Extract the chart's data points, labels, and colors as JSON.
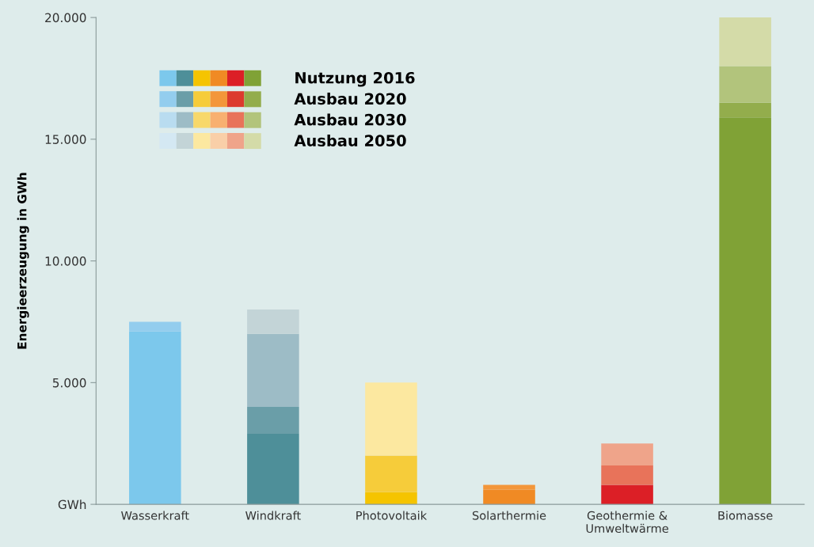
{
  "chart_data": {
    "type": "bar",
    "stacked": true,
    "ylabel": "Energieerzeugung in GWh",
    "categories": [
      "Wasserkraft",
      "Windkraft",
      "Photovoltaik",
      "Solarthermie",
      "Geothermie &\nUmweltwärme",
      "Biomasse"
    ],
    "series": [
      {
        "name": "Nutzung 2016",
        "colors": [
          "#7cc8ec",
          "#4e8f99",
          "#f5c400",
          "#f08a24",
          "#dc1f26",
          "#80a236"
        ],
        "values": [
          7100,
          2900,
          500,
          600,
          800,
          15900
        ]
      },
      {
        "name": "Ausbau 2020",
        "colors": [
          "#93cdee",
          "#6a9ea8",
          "#f6cc3a",
          "#f3963a",
          "#dc3a2e",
          "#93ad4c"
        ],
        "values": [
          400,
          1100,
          1500,
          200,
          0,
          600
        ]
      },
      {
        "name": "Ausbau 2030",
        "colors": [
          "#b9dcf0",
          "#9dbcc6",
          "#f8d86a",
          "#f8b070",
          "#e8735a",
          "#b2c47c"
        ],
        "values": [
          0,
          3000,
          0,
          0,
          800,
          1500
        ]
      },
      {
        "name": "Ausbau 2050",
        "colors": [
          "#d4e8f3",
          "#c3d4d7",
          "#fce8a0",
          "#f9cfa8",
          "#efa48a",
          "#d4dba8"
        ],
        "values": [
          0,
          1000,
          3000,
          0,
          900,
          2000
        ]
      }
    ],
    "ylim": [
      0,
      20000
    ],
    "yticks": [
      {
        "value": 0,
        "label": "GWh"
      },
      {
        "value": 5000,
        "label": "5.000"
      },
      {
        "value": 10000,
        "label": "10.000"
      },
      {
        "value": 15000,
        "label": "15.000"
      },
      {
        "value": 20000,
        "label": "20.000"
      }
    ],
    "legend": "top left",
    "grid": false
  }
}
